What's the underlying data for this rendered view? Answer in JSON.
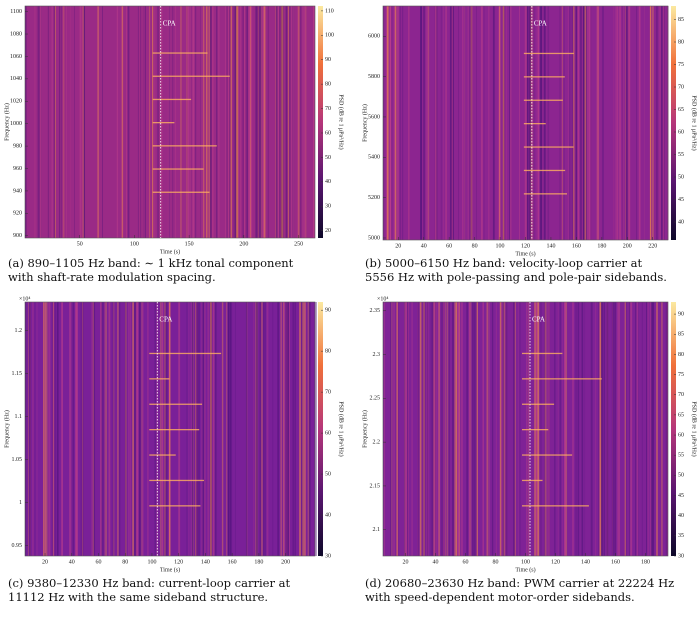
{
  "chart_data": [
    {
      "type": "spectrogram",
      "xlabel": "Time (s)",
      "ylabel": "Frequency (Hz)",
      "annotation": "CPA",
      "cpa_x": 124,
      "xlim": [
        0,
        265
      ],
      "xticks": [
        50,
        100,
        150,
        200,
        250
      ],
      "ylim": [
        898,
        1105
      ],
      "yticks": [
        900,
        920,
        940,
        960,
        980,
        1000,
        1020,
        1040,
        1060,
        1080,
        1100
      ],
      "colorbar_label": "PSD (dB re 1 μPa²/Hz)",
      "clim": [
        17,
        112
      ],
      "cticks": [
        20,
        30,
        40,
        50,
        60,
        70,
        80,
        90,
        100,
        110
      ],
      "caption": "(a) 890–1105 Hz band: ∼ 1 kHz tonal component with shaft-rate modulation spacing."
    },
    {
      "type": "spectrogram",
      "xlabel": "Time (s)",
      "ylabel": "Frequency (Hz)",
      "annotation": "CPA",
      "cpa_x": 125,
      "xlim": [
        8,
        232
      ],
      "xticks": [
        20,
        40,
        60,
        80,
        100,
        120,
        140,
        160,
        180,
        200,
        220
      ],
      "ylim": [
        4990,
        6150
      ],
      "yticks": [
        5000,
        5200,
        5400,
        5600,
        5800,
        6000
      ],
      "colorbar_label": "PSD (dB re 1 μPa²/Hz)",
      "clim": [
        36,
        88
      ],
      "cticks": [
        40,
        45,
        50,
        55,
        60,
        65,
        70,
        75,
        80,
        85
      ],
      "caption": "(b) 5000–6150 Hz band: velocity-loop carrier at 5556 Hz with pole-passing and pole-pair sidebands."
    },
    {
      "type": "spectrogram",
      "xlabel": "Time (s)",
      "ylabel": "Frequency (Hz)",
      "annotation": "CPA",
      "cpa_x": 104,
      "y_multiplier": "×10⁴",
      "xlim": [
        5,
        222
      ],
      "xticks": [
        20,
        40,
        60,
        80,
        100,
        120,
        140,
        160,
        180,
        200
      ],
      "ylim": [
        0.938,
        1.233
      ],
      "yticks": [
        0.95,
        1,
        1.05,
        1.1,
        1.15,
        1.2
      ],
      "colorbar_label": "PSD (dB re 1 μPa²/Hz)",
      "clim": [
        30,
        92
      ],
      "cticks": [
        30,
        40,
        50,
        60,
        70,
        80,
        90
      ],
      "caption": "(c) 9380–12330 Hz band: current-loop carrier at 11112 Hz with the same sideband structure."
    },
    {
      "type": "spectrogram",
      "xlabel": "Time (s)",
      "ylabel": "Frequency (Hz)",
      "annotation": "CPA",
      "cpa_x": 103,
      "y_multiplier": "×10⁴",
      "xlim": [
        5,
        195
      ],
      "xticks": [
        20,
        40,
        60,
        80,
        100,
        120,
        140,
        160,
        180
      ],
      "ylim": [
        2.07,
        2.36
      ],
      "yticks": [
        2.1,
        2.15,
        2.2,
        2.25,
        2.3,
        2.35
      ],
      "colorbar_label": "PSD (dB re 1 μPa²/Hz)",
      "clim": [
        30,
        93
      ],
      "cticks": [
        30,
        35,
        40,
        45,
        50,
        55,
        60,
        65,
        70,
        75,
        80,
        85,
        90
      ],
      "caption": "(d) 20680–23630 Hz band: PWM carrier at 22224 Hz with speed-dependent motor-order sidebands."
    }
  ]
}
